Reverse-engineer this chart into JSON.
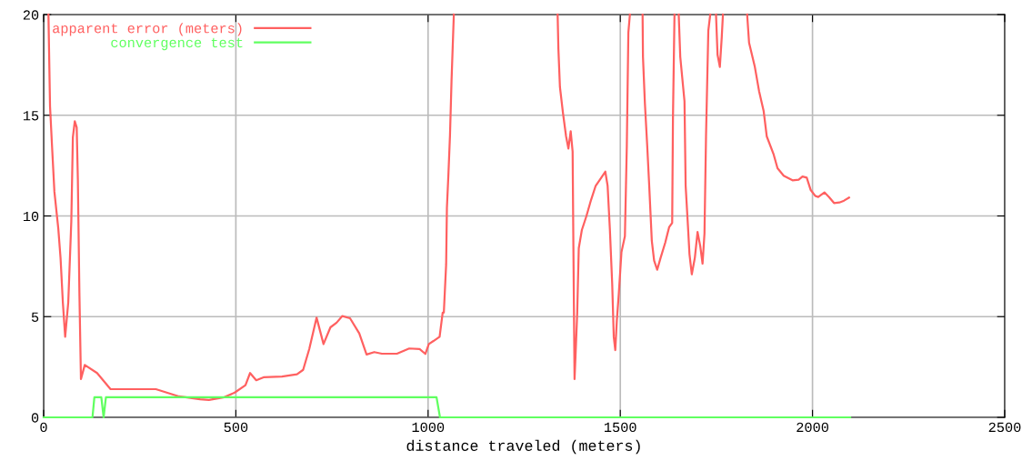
{
  "chart_data": {
    "type": "line",
    "xlabel": "distance traveled (meters)",
    "xlim": [
      0,
      2500
    ],
    "xticks": [
      0,
      500,
      1000,
      1500,
      2000,
      2500
    ],
    "ylim": [
      0,
      20
    ],
    "yticks": [
      0,
      5,
      10,
      15,
      20
    ],
    "grid": true,
    "legend": "top left",
    "line_style": "solid",
    "marker": "none",
    "series": [
      {
        "name": "apparent error (meters)",
        "color": "#ff6060",
        "x": [
          12.5,
          16.6,
          22,
          28,
          38,
          44,
          50,
          56,
          64,
          72,
          76,
          81,
          86,
          89,
          93,
          97,
          107,
          139,
          174,
          292,
          352,
          407,
          430,
          470,
          497,
          525,
          537,
          553,
          572,
          620,
          659,
          675,
          691,
          710,
          728,
          746,
          762,
          777,
          797,
          821,
          840,
          860,
          880,
          919,
          951,
          978,
          993,
          1002,
          1014,
          1030,
          1038,
          1041,
          1047,
          1049,
          1053,
          1057,
          1061,
          1067,
          1200,
          1337,
          1339,
          1343,
          1351,
          1359,
          1365,
          1371,
          1376,
          1378,
          1381,
          1384,
          1388,
          1392,
          1400,
          1412,
          1424,
          1436,
          1447,
          1461,
          1467,
          1473,
          1479,
          1483,
          1487,
          1491,
          1496,
          1503,
          1512,
          1517,
          1521,
          1525,
          1540,
          1558,
          1559,
          1564,
          1570,
          1575,
          1582,
          1588,
          1596,
          1605,
          1617,
          1627,
          1635,
          1637,
          1641,
          1646,
          1652,
          1656,
          1667,
          1670,
          1676,
          1680,
          1686,
          1694,
          1701,
          1708,
          1714,
          1719,
          1723,
          1729,
          1734,
          1740,
          1749,
          1753,
          1759,
          1764,
          1767,
          1800,
          1830,
          1835,
          1850,
          1861,
          1873,
          1881,
          1899,
          1909,
          1925,
          1948,
          1964,
          1974,
          1985,
          1995,
          2007,
          2015,
          2031,
          2043,
          2056,
          2070,
          2082,
          2095
        ],
        "values": [
          20,
          15.45,
          13.4,
          11.2,
          9.4,
          7.9,
          5.7,
          4.0,
          5.7,
          9.75,
          13.9,
          14.7,
          14.4,
          11.8,
          6.2,
          1.9,
          2.6,
          2.2,
          1.4,
          1.4,
          1.04,
          0.9,
          0.86,
          1.0,
          1.23,
          1.6,
          2.2,
          1.84,
          1.99,
          2.03,
          2.14,
          2.36,
          3.4,
          4.95,
          3.64,
          4.47,
          4.7,
          5.03,
          4.92,
          4.17,
          3.12,
          3.24,
          3.16,
          3.16,
          3.42,
          3.39,
          3.15,
          3.64,
          3.79,
          4.0,
          5.2,
          5.2,
          7.6,
          10.4,
          12.1,
          14.0,
          16.7,
          20,
          null,
          20,
          18.3,
          16.4,
          15.1,
          13.95,
          13.35,
          14.2,
          13.2,
          8.5,
          1.9,
          3.26,
          5.2,
          8.4,
          9.3,
          10.0,
          10.8,
          11.5,
          11.8,
          12.2,
          11.5,
          9.3,
          6.6,
          4.0,
          3.34,
          4.8,
          6.1,
          8.2,
          9.0,
          13.5,
          19.1,
          20,
          null,
          20,
          17.9,
          15.6,
          13.5,
          11.6,
          8.76,
          7.78,
          7.33,
          7.93,
          8.68,
          9.44,
          9.66,
          14.85,
          20,
          null,
          20,
          17.9,
          15.7,
          11.5,
          9.5,
          8.1,
          7.1,
          7.93,
          9.2,
          8.5,
          7.63,
          9.13,
          13.95,
          19.2,
          20,
          null,
          20,
          18.0,
          17.4,
          18.9,
          20,
          null,
          20,
          18.6,
          17.4,
          16.2,
          15.2,
          13.95,
          13.05,
          12.37,
          12.0,
          11.77,
          11.8,
          11.96,
          11.9,
          11.3,
          11.0,
          10.94,
          11.17,
          10.94,
          10.64,
          10.67,
          10.76,
          10.91
        ]
      },
      {
        "name": "convergence test",
        "color": "#60ff60",
        "x": [
          0,
          127,
          132,
          150,
          156,
          162,
          1022,
          1031,
          2098
        ],
        "values": [
          0,
          0,
          1,
          1,
          0,
          1,
          1,
          0,
          0
        ]
      }
    ]
  }
}
